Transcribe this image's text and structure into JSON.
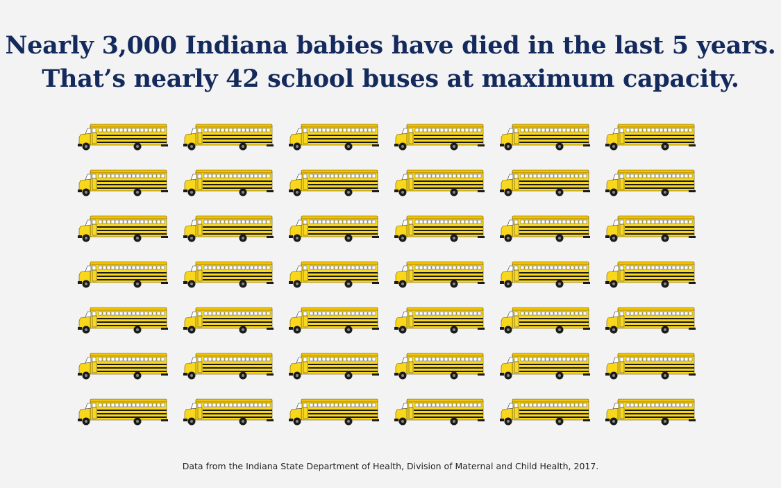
{
  "headline": {
    "line1": "Nearly 3,000 Indiana babies have died in the last 5 years.",
    "line2": "That’s nearly 42 school buses at maximum capacity."
  },
  "pictogram": {
    "icon": "school-bus-icon",
    "count": 42,
    "rows": 7,
    "columns": 6,
    "colors": {
      "bus_body": "#f9d71c",
      "stripe": "#1a1a1a",
      "wheel": "#1a1a1a"
    }
  },
  "source": "Data from the Indiana State Department of Health, Division of Maternal and Child Health, 2017.",
  "colors": {
    "headline": "#142a5c",
    "background": "#f3f3f3"
  }
}
